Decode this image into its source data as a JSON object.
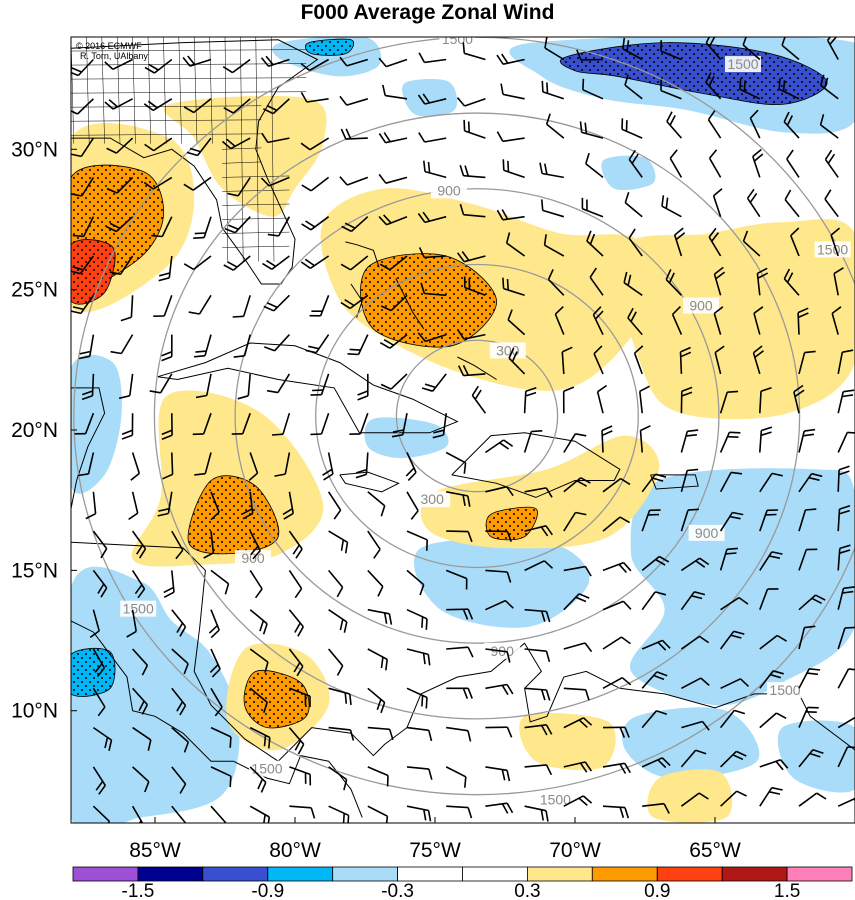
{
  "title": "F000 Average Zonal Wind",
  "credit": {
    "line1": "© 2016 ECMWF",
    "line2": "R. Torn, UAlbany"
  },
  "map": {
    "lon_range": [
      -88,
      -60
    ],
    "lat_range": [
      6,
      34
    ],
    "lat_ticks": [
      {
        "value": 30,
        "label": "30°N"
      },
      {
        "value": 25,
        "label": "25°N"
      },
      {
        "value": 20,
        "label": "20°N"
      },
      {
        "value": 15,
        "label": "15°N"
      },
      {
        "value": 10,
        "label": "10°N"
      }
    ],
    "lon_ticks": [
      {
        "value": -85,
        "label": "85°W"
      },
      {
        "value": -80,
        "label": "80°W"
      },
      {
        "value": -75,
        "label": "75°W"
      },
      {
        "value": -70,
        "label": "70°W"
      },
      {
        "value": -65,
        "label": "65°W"
      }
    ],
    "range_rings": {
      "center": {
        "lon": -73.5,
        "lat": 20.5
      },
      "radii_km": [
        300,
        600,
        900,
        1200,
        1500
      ],
      "labels": [
        {
          "text": "1500",
          "ring_km": 1500,
          "lon": -74.2,
          "lat": 33.9
        },
        {
          "text": "900",
          "ring_km": 900,
          "lon": -74.5,
          "lat": 28.5
        },
        {
          "text": "1500",
          "ring_km": 1500,
          "lon": -60.8,
          "lat": 26.4
        },
        {
          "text": "900",
          "ring_km": 900,
          "lon": -65.5,
          "lat": 24.4
        },
        {
          "text": "300",
          "ring_km": 300,
          "lon": -72.4,
          "lat": 22.8
        },
        {
          "text": "300",
          "ring_km": 300,
          "lon": -75.1,
          "lat": 17.5
        },
        {
          "text": "900",
          "ring_km": 900,
          "lon": -81.5,
          "lat": 15.4
        },
        {
          "text": "900",
          "ring_km": 900,
          "lon": -65.3,
          "lat": 16.3
        },
        {
          "text": "900",
          "ring_km": 900,
          "lon": -72.6,
          "lat": 12.1
        },
        {
          "text": "1500",
          "ring_km": 1500,
          "lon": -85.6,
          "lat": 13.6
        },
        {
          "text": "1500",
          "ring_km": 1500,
          "lon": -62.5,
          "lat": 10.7
        },
        {
          "text": "1500",
          "ring_km": 1500,
          "lon": -81.0,
          "lat": 7.9
        },
        {
          "text": "1500",
          "ring_km": 1500,
          "lon": -70.7,
          "lat": 6.8
        },
        {
          "text": "1500",
          "ring_km": 1500,
          "lon": -64.0,
          "lat": 33.0
        }
      ]
    }
  },
  "colorbar": {
    "colors": [
      "#a050d8",
      "#000090",
      "#3850d0",
      "#00b8f8",
      "#a8dcf8",
      "#ffffff",
      "#ffffff",
      "#ffe88c",
      "#ff9a00",
      "#ff4010",
      "#b01818",
      "#ff80b8"
    ],
    "tick_values": [
      -1.5,
      -0.9,
      -0.3,
      0.3,
      0.9,
      1.5
    ],
    "tick_labels": [
      "-1.5",
      "-0.9",
      "-0.3",
      "0.3",
      "0.9",
      "1.5"
    ]
  },
  "field": {
    "variable": "Average Zonal Wind",
    "stippled_levels": "|value| ≥ 0.9",
    "blobs": [
      {
        "value": -0.5,
        "pts": [
          [
            -80.5,
            33.8
          ],
          [
            -77.5,
            34.0
          ],
          [
            -77.0,
            33.0
          ],
          [
            -78.5,
            32.6
          ],
          [
            -80.5,
            33.2
          ]
        ]
      },
      {
        "value": -1.0,
        "pts": [
          [
            -79.5,
            33.8
          ],
          [
            -78.0,
            33.9
          ],
          [
            -78.2,
            33.4
          ],
          [
            -79.4,
            33.4
          ]
        ]
      },
      {
        "value": -0.5,
        "pts": [
          [
            -71.5,
            33.8
          ],
          [
            -60.0,
            33.8
          ],
          [
            -60.0,
            31.0
          ],
          [
            -62.5,
            30.6
          ],
          [
            -66.0,
            31.4
          ],
          [
            -69.0,
            31.8
          ],
          [
            -71.2,
            32.6
          ]
        ]
      },
      {
        "value": -1.2,
        "pts": [
          [
            -70.3,
            33.3
          ],
          [
            -66.8,
            33.8
          ],
          [
            -63.0,
            33.4
          ],
          [
            -61.0,
            32.4
          ],
          [
            -62.6,
            31.6
          ],
          [
            -65.5,
            32.0
          ],
          [
            -68.5,
            32.6
          ],
          [
            -70.0,
            32.8
          ]
        ]
      },
      {
        "value": -0.5,
        "pts": [
          [
            -76.0,
            32.4
          ],
          [
            -74.5,
            32.4
          ],
          [
            -74.3,
            31.4
          ],
          [
            -75.6,
            31.2
          ],
          [
            -76.1,
            31.8
          ]
        ]
      },
      {
        "value": -0.5,
        "pts": [
          [
            -69.0,
            29.6
          ],
          [
            -67.5,
            29.7
          ],
          [
            -67.2,
            28.8
          ],
          [
            -68.6,
            28.6
          ]
        ]
      },
      {
        "value": -0.5,
        "pts": [
          [
            -88.0,
            22.2
          ],
          [
            -86.5,
            22.4
          ],
          [
            -86.2,
            20.5
          ],
          [
            -86.8,
            18.4
          ],
          [
            -88.0,
            18.0
          ]
        ]
      },
      {
        "value": -0.5,
        "pts": [
          [
            -77.2,
            20.4
          ],
          [
            -75.0,
            20.2
          ],
          [
            -74.6,
            19.4
          ],
          [
            -76.2,
            19.0
          ],
          [
            -77.4,
            19.4
          ]
        ]
      },
      {
        "value": -0.5,
        "pts": [
          [
            -88.0,
            14.4
          ],
          [
            -85.5,
            14.6
          ],
          [
            -84.4,
            13.2
          ],
          [
            -83.0,
            12.0
          ],
          [
            -82.0,
            9.6
          ],
          [
            -82.6,
            7.0
          ],
          [
            -85.5,
            6.2
          ],
          [
            -88.0,
            6.2
          ]
        ]
      },
      {
        "value": -1.0,
        "pts": [
          [
            -88.0,
            12.0
          ],
          [
            -86.6,
            12.1
          ],
          [
            -86.6,
            10.8
          ],
          [
            -88.0,
            10.6
          ]
        ]
      },
      {
        "value": -0.5,
        "pts": [
          [
            -75.5,
            15.8
          ],
          [
            -71.0,
            16.0
          ],
          [
            -69.5,
            14.6
          ],
          [
            -71.6,
            13.0
          ],
          [
            -74.8,
            13.6
          ]
        ]
      },
      {
        "value": -0.5,
        "pts": [
          [
            -67.0,
            18.2
          ],
          [
            -61.5,
            18.6
          ],
          [
            -60.0,
            17.8
          ],
          [
            -60.0,
            13.0
          ],
          [
            -62.6,
            11.0
          ],
          [
            -65.0,
            10.2
          ],
          [
            -68.0,
            11.4
          ],
          [
            -66.8,
            13.6
          ],
          [
            -68.0,
            15.6
          ]
        ]
      },
      {
        "value": -0.5,
        "pts": [
          [
            -67.8,
            9.8
          ],
          [
            -64.6,
            10.0
          ],
          [
            -63.5,
            8.2
          ],
          [
            -66.6,
            7.6
          ],
          [
            -68.2,
            8.6
          ]
        ]
      },
      {
        "value": -0.5,
        "pts": [
          [
            -62.6,
            9.4
          ],
          [
            -60.0,
            9.4
          ],
          [
            -60.0,
            7.2
          ],
          [
            -62.2,
            7.6
          ]
        ]
      },
      {
        "value": 0.5,
        "pts": [
          [
            -84.5,
            31.6
          ],
          [
            -79.5,
            31.8
          ],
          [
            -79.0,
            30.2
          ],
          [
            -80.0,
            28.6
          ],
          [
            -80.8,
            27.6
          ],
          [
            -82.6,
            28.6
          ],
          [
            -83.6,
            30.4
          ]
        ]
      },
      {
        "value": 0.5,
        "pts": [
          [
            -88.0,
            30.4
          ],
          [
            -84.5,
            30.4
          ],
          [
            -83.6,
            28.2
          ],
          [
            -84.6,
            25.8
          ],
          [
            -88.0,
            24.4
          ]
        ]
      },
      {
        "value": 1.0,
        "pts": [
          [
            -88.0,
            29.0
          ],
          [
            -85.4,
            29.2
          ],
          [
            -84.7,
            27.6
          ],
          [
            -85.7,
            26.0
          ],
          [
            -88.0,
            25.2
          ]
        ]
      },
      {
        "value": 1.2,
        "pts": [
          [
            -88.0,
            26.6
          ],
          [
            -86.5,
            26.5
          ],
          [
            -86.8,
            24.9
          ],
          [
            -88.0,
            24.6
          ]
        ]
      },
      {
        "value": 0.5,
        "pts": [
          [
            -79.0,
            27.4
          ],
          [
            -76.8,
            28.6
          ],
          [
            -73.5,
            28.0
          ],
          [
            -70.5,
            27.0
          ],
          [
            -67.8,
            26.8
          ],
          [
            -67.2,
            24.8
          ],
          [
            -68.8,
            22.4
          ],
          [
            -70.8,
            21.4
          ],
          [
            -74.0,
            22.0
          ],
          [
            -77.0,
            23.4
          ],
          [
            -78.5,
            24.8
          ]
        ]
      },
      {
        "value": 1.0,
        "pts": [
          [
            -77.4,
            25.8
          ],
          [
            -74.6,
            26.2
          ],
          [
            -72.8,
            24.6
          ],
          [
            -74.4,
            23.0
          ],
          [
            -77.2,
            23.6
          ]
        ]
      },
      {
        "value": 0.5,
        "pts": [
          [
            -68.4,
            26.4
          ],
          [
            -65.2,
            27.0
          ],
          [
            -62.6,
            27.4
          ],
          [
            -60.0,
            27.0
          ],
          [
            -60.0,
            22.4
          ],
          [
            -62.4,
            20.6
          ],
          [
            -66.2,
            20.6
          ],
          [
            -67.6,
            22.2
          ]
        ]
      },
      {
        "value": 0.5,
        "pts": [
          [
            -84.6,
            21.2
          ],
          [
            -81.2,
            20.6
          ],
          [
            -79.0,
            17.4
          ],
          [
            -80.5,
            15.6
          ],
          [
            -83.4,
            15.2
          ],
          [
            -85.8,
            15.4
          ],
          [
            -84.8,
            17.6
          ]
        ]
      },
      {
        "value": 1.0,
        "pts": [
          [
            -83.0,
            18.2
          ],
          [
            -81.4,
            18.0
          ],
          [
            -80.6,
            16.2
          ],
          [
            -82.2,
            15.6
          ],
          [
            -83.8,
            16.0
          ]
        ]
      },
      {
        "value": 0.5,
        "pts": [
          [
            -75.0,
            17.8
          ],
          [
            -71.0,
            18.6
          ],
          [
            -68.2,
            19.8
          ],
          [
            -67.0,
            18.6
          ],
          [
            -68.8,
            16.2
          ],
          [
            -72.6,
            15.8
          ],
          [
            -75.2,
            16.4
          ]
        ]
      },
      {
        "value": 1.0,
        "pts": [
          [
            -73.0,
            17.0
          ],
          [
            -71.4,
            17.2
          ],
          [
            -71.8,
            16.2
          ],
          [
            -73.0,
            16.2
          ]
        ]
      },
      {
        "value": 0.5,
        "pts": [
          [
            -81.8,
            12.2
          ],
          [
            -79.6,
            12.0
          ],
          [
            -78.8,
            10.2
          ],
          [
            -80.6,
            8.6
          ],
          [
            -82.4,
            9.6
          ]
        ]
      },
      {
        "value": 1.0,
        "pts": [
          [
            -81.4,
            11.4
          ],
          [
            -79.8,
            11.0
          ],
          [
            -79.6,
            9.8
          ],
          [
            -81.0,
            9.4
          ],
          [
            -81.8,
            10.2
          ]
        ]
      },
      {
        "value": 0.5,
        "pts": [
          [
            -71.8,
            9.8
          ],
          [
            -68.8,
            9.6
          ],
          [
            -69.0,
            8.0
          ],
          [
            -71.4,
            8.2
          ]
        ]
      },
      {
        "value": 0.5,
        "pts": [
          [
            -67.0,
            7.6
          ],
          [
            -64.8,
            7.8
          ],
          [
            -64.6,
            6.2
          ],
          [
            -67.2,
            6.2
          ]
        ]
      }
    ]
  }
}
